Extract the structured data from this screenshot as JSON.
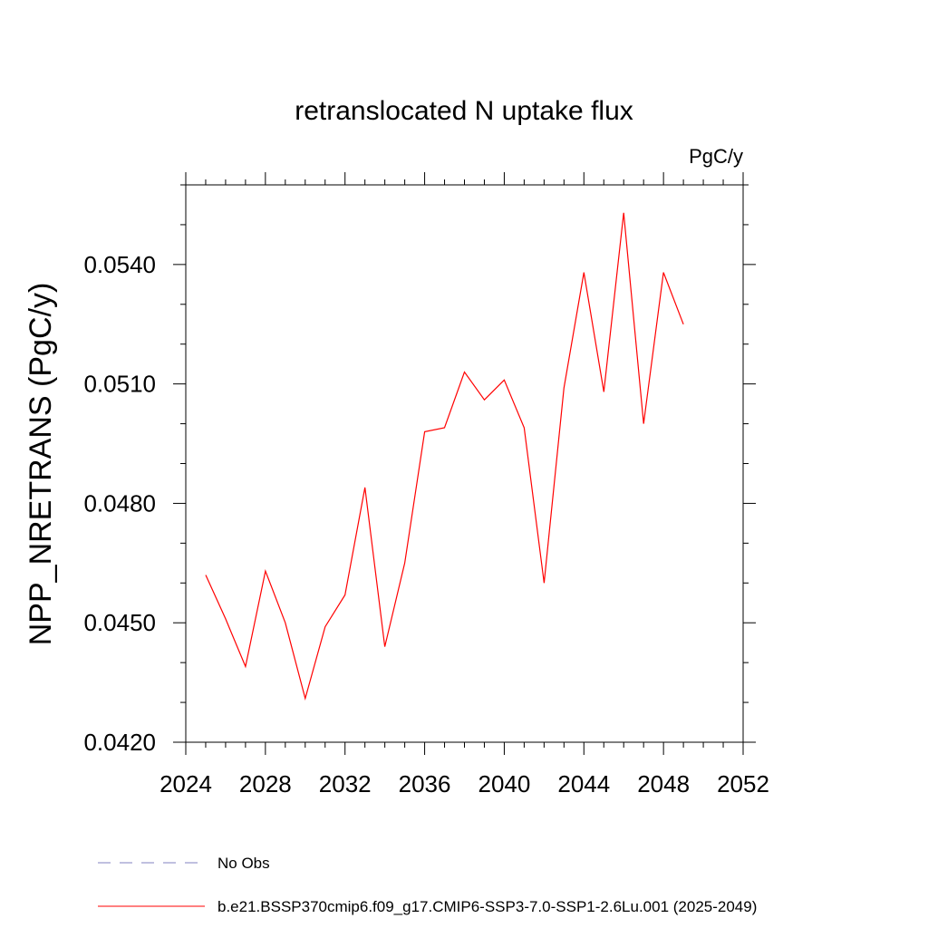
{
  "chart_data": {
    "type": "line",
    "title": "retranslocated N uptake flux",
    "units_label": "PgC/y",
    "ylabel": "NPP_NRETRANS  (PgC/y)",
    "xlabel": "",
    "xlim": [
      2024,
      2052
    ],
    "ylim": [
      0.042,
      0.056
    ],
    "x_ticks": [
      2024,
      2028,
      2032,
      2036,
      2040,
      2044,
      2048,
      2052
    ],
    "x_tick_labels": [
      "2024",
      "2028",
      "2032",
      "2036",
      "2040",
      "2044",
      "2048",
      "2052"
    ],
    "x_minor_step": 1,
    "y_ticks": [
      0.042,
      0.045,
      0.048,
      0.051,
      0.054
    ],
    "y_tick_labels": [
      "0.0420",
      "0.0450",
      "0.0480",
      "0.0510",
      "0.0540"
    ],
    "y_minor_step": 0.001,
    "grid": false,
    "legend_position": "bottom",
    "series": [
      {
        "name": "b.e21.BSSP370cmip6.f09_g17.CMIP6-SSP3-7.0-SSP1-2.6Lu.001 (2025-2049)",
        "color": "#ff0000",
        "dash": "solid",
        "x": [
          2025,
          2026,
          2027,
          2028,
          2029,
          2030,
          2031,
          2032,
          2033,
          2034,
          2035,
          2036,
          2037,
          2038,
          2039,
          2040,
          2041,
          2042,
          2043,
          2044,
          2045,
          2046,
          2047,
          2048,
          2049
        ],
        "values": [
          0.0462,
          0.0451,
          0.0439,
          0.0463,
          0.045,
          0.0431,
          0.0449,
          0.0457,
          0.0484,
          0.0444,
          0.0465,
          0.0498,
          0.0499,
          0.0513,
          0.0506,
          0.0511,
          0.0499,
          0.046,
          0.0509,
          0.0538,
          0.0508,
          0.0553,
          0.05,
          0.0538,
          0.0525
        ]
      }
    ],
    "legend": [
      {
        "label": "No Obs",
        "color": "#8080c0",
        "dash": "dashed"
      },
      {
        "label": "b.e21.BSSP370cmip6.f09_g17.CMIP6-SSP3-7.0-SSP1-2.6Lu.001 (2025-2049)",
        "color": "#ff0000",
        "dash": "solid"
      }
    ]
  }
}
